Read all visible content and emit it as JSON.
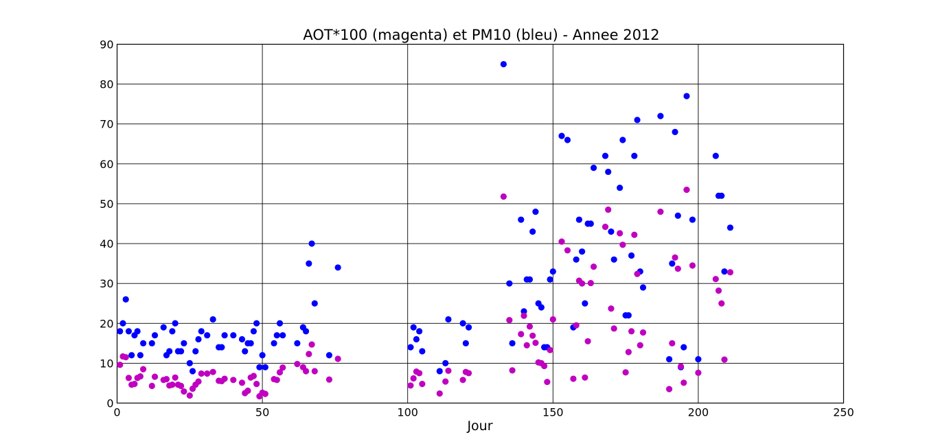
{
  "chart_data": {
    "type": "scatter",
    "title": "AOT*100 (magenta) et PM10 (bleu) - Annee 2012",
    "xlabel": "Jour",
    "ylabel": "",
    "xlim": [
      0,
      250
    ],
    "ylim": [
      0,
      90
    ],
    "xticks": [
      0,
      50,
      100,
      150,
      200,
      250
    ],
    "yticks": [
      0,
      10,
      20,
      30,
      40,
      50,
      60,
      70,
      80,
      90
    ],
    "grid": true,
    "legend": "none",
    "series": [
      {
        "color": "#0000ff",
        "x": [
          1,
          2,
          3,
          4,
          5,
          6,
          7,
          8,
          9,
          12,
          13,
          16,
          17,
          18,
          19,
          20,
          21,
          22,
          23,
          25,
          26,
          27,
          28,
          29,
          31,
          33,
          35,
          36,
          37,
          40,
          43,
          44,
          45,
          46,
          47,
          48,
          49,
          50,
          51,
          54,
          55,
          56,
          57,
          62,
          64,
          65,
          66,
          67,
          68,
          73,
          76,
          101,
          102,
          103,
          104,
          105,
          111,
          113,
          114,
          119,
          120,
          121,
          133,
          135,
          136,
          139,
          140,
          141,
          142,
          143,
          144,
          145,
          146,
          147,
          148,
          149,
          150,
          153,
          155,
          157,
          158,
          159,
          160,
          161,
          162,
          163,
          164,
          168,
          169,
          170,
          171,
          173,
          174,
          175,
          176,
          177,
          178,
          179,
          180,
          181,
          187,
          190,
          191,
          192,
          193,
          194,
          195,
          196,
          198,
          200,
          206,
          207,
          208,
          209,
          211
        ],
        "y": [
          18,
          20,
          26,
          18,
          12,
          17,
          18,
          12,
          15,
          15,
          17,
          19,
          12,
          13,
          18,
          20,
          13,
          13,
          15,
          10,
          8,
          13,
          16,
          18,
          17,
          21,
          14,
          14,
          17,
          17,
          16,
          13,
          15,
          15,
          18,
          20,
          9,
          12,
          9,
          15,
          17,
          20,
          17,
          15,
          19,
          18,
          35,
          40,
          25,
          12,
          34,
          14,
          19,
          16,
          18,
          13,
          8,
          10,
          21,
          20,
          15,
          19,
          85,
          30,
          15,
          46,
          23,
          31,
          31,
          43,
          48,
          25,
          24,
          14,
          14,
          31,
          33,
          67,
          66,
          19,
          36,
          46,
          38,
          25,
          45,
          45,
          59,
          62,
          58,
          43,
          36,
          54,
          66,
          22,
          22,
          37,
          62,
          71,
          33,
          29,
          72,
          11,
          35,
          68,
          47,
          9,
          14,
          77,
          46,
          11,
          62,
          52,
          52,
          33,
          44
        ]
      },
      {
        "color": "#c000c0",
        "x": [
          1,
          2,
          3,
          4,
          5,
          6,
          7,
          8,
          9,
          12,
          13,
          16,
          17,
          18,
          19,
          20,
          21,
          22,
          23,
          25,
          26,
          27,
          28,
          29,
          31,
          33,
          35,
          36,
          37,
          40,
          43,
          44,
          45,
          46,
          47,
          48,
          49,
          50,
          51,
          54,
          55,
          56,
          57,
          62,
          64,
          65,
          66,
          67,
          68,
          73,
          76,
          101,
          102,
          103,
          104,
          105,
          111,
          113,
          114,
          119,
          120,
          121,
          133,
          135,
          136,
          139,
          140,
          141,
          142,
          143,
          144,
          145,
          146,
          147,
          148,
          149,
          150,
          153,
          155,
          157,
          158,
          159,
          160,
          161,
          162,
          163,
          164,
          168,
          169,
          170,
          171,
          173,
          174,
          175,
          176,
          177,
          178,
          179,
          180,
          181,
          187,
          190,
          191,
          192,
          193,
          194,
          195,
          196,
          198,
          200,
          206,
          207,
          208,
          209,
          211
        ],
        "y": [
          9.6,
          11.7,
          11.5,
          6.3,
          4.6,
          4.8,
          6.3,
          6.7,
          8.5,
          4.3,
          6.6,
          5.8,
          6.0,
          4.4,
          4.6,
          6.4,
          4.6,
          4.3,
          2.9,
          1.9,
          3.6,
          4.6,
          5.4,
          7.4,
          7.4,
          7.8,
          5.6,
          5.5,
          6.1,
          5.8,
          5.1,
          2.5,
          3.1,
          6.4,
          6.8,
          4.8,
          1.7,
          2.6,
          2.3,
          6.0,
          5.8,
          7.7,
          8.9,
          9.8,
          9.0,
          8.0,
          12.3,
          14.7,
          8.0,
          5.9,
          11.1,
          4.4,
          6.2,
          7.9,
          7.5,
          4.8,
          2.4,
          5.4,
          8.1,
          5.8,
          7.8,
          7.5,
          51.8,
          20.8,
          8.2,
          17.3,
          21.9,
          14.5,
          19.2,
          16.9,
          15.1,
          10.2,
          10.0,
          9.3,
          5.3,
          13.3,
          21.0,
          40.5,
          38.3,
          6.1,
          19.5,
          30.7,
          30.0,
          6.4,
          15.5,
          30.1,
          34.2,
          44.2,
          48.5,
          23.7,
          18.7,
          42.6,
          39.7,
          7.7,
          12.8,
          18.0,
          42.2,
          32.4,
          14.5,
          17.7,
          48.0,
          3.5,
          15.0,
          36.5,
          33.7,
          9.2,
          5.1,
          53.5,
          34.5,
          7.6,
          31.1,
          28.2,
          25.0,
          10.9,
          32.8
        ]
      }
    ]
  }
}
